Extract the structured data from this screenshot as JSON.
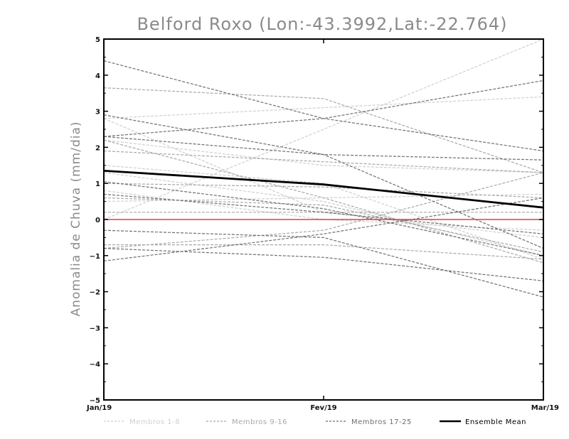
{
  "chart_data": {
    "type": "line",
    "title": "Belford Roxo (Lon:-43.3992,Lat:-22.764)",
    "ylabel": "Anomalia de Chuva (mm/dia)",
    "xlabel": "",
    "categories": [
      "Jan/19",
      "Fev/19",
      "Mar/19"
    ],
    "ylim": [
      -5,
      5
    ],
    "yticks": [
      -5,
      -4,
      -3,
      -2,
      -1,
      0,
      1,
      2,
      3,
      4,
      5
    ],
    "grid": false,
    "legend_position": "bottom",
    "zero_line": {
      "value": 0,
      "color": "#e04040"
    },
    "groups": [
      {
        "name": "Membros 1-8",
        "color": "#cfcfcf",
        "dash": "dashed"
      },
      {
        "name": "Membros 9-16",
        "color": "#a8a8a8",
        "dash": "dashed"
      },
      {
        "name": "Membros 17-25",
        "color": "#6e6e6e",
        "dash": "dashed"
      },
      {
        "name": "Ensemble Mean",
        "color": "#000000",
        "dash": "solid"
      }
    ],
    "series": [
      {
        "group": 0,
        "values": [
          0.0,
          2.5,
          5.0
        ]
      },
      {
        "group": 0,
        "values": [
          2.8,
          3.1,
          3.4
        ]
      },
      {
        "group": 0,
        "values": [
          0.5,
          0.6,
          0.7
        ]
      },
      {
        "group": 0,
        "values": [
          1.5,
          1.0,
          -1.1
        ]
      },
      {
        "group": 0,
        "values": [
          2.8,
          0.2,
          -0.5
        ]
      },
      {
        "group": 0,
        "values": [
          2.2,
          1.5,
          1.3
        ]
      },
      {
        "group": 0,
        "values": [
          0.8,
          0.0,
          -0.3
        ]
      },
      {
        "group": 0,
        "values": [
          1.3,
          0.5,
          -1.0
        ]
      },
      {
        "group": 1,
        "values": [
          3.65,
          3.35,
          1.3
        ]
      },
      {
        "group": 1,
        "values": [
          1.9,
          1.6,
          1.3
        ]
      },
      {
        "group": 1,
        "values": [
          2.2,
          0.6,
          -1.2
        ]
      },
      {
        "group": 1,
        "values": [
          0.2,
          0.2,
          0.2
        ]
      },
      {
        "group": 1,
        "values": [
          -0.8,
          -0.3,
          1.3
        ]
      },
      {
        "group": 1,
        "values": [
          0.6,
          0.4,
          -0.9
        ]
      },
      {
        "group": 1,
        "values": [
          -0.7,
          -0.7,
          -1.1
        ]
      },
      {
        "group": 1,
        "values": [
          1.0,
          0.9,
          0.6
        ]
      },
      {
        "group": 2,
        "values": [
          4.4,
          2.8,
          1.9
        ]
      },
      {
        "group": 2,
        "values": [
          2.3,
          2.8,
          3.85
        ]
      },
      {
        "group": 2,
        "values": [
          2.9,
          1.8,
          -0.8
        ]
      },
      {
        "group": 2,
        "values": [
          -1.15,
          -0.4,
          0.6
        ]
      },
      {
        "group": 2,
        "values": [
          1.05,
          0.3,
          -1.0
        ]
      },
      {
        "group": 2,
        "values": [
          0.7,
          0.2,
          -0.4
        ]
      },
      {
        "group": 2,
        "values": [
          -0.3,
          -0.5,
          -2.15
        ]
      },
      {
        "group": 2,
        "values": [
          -0.8,
          -1.05,
          -1.7
        ]
      },
      {
        "group": 2,
        "values": [
          2.3,
          1.8,
          1.65
        ]
      },
      {
        "group": 3,
        "name": "Ensemble Mean",
        "values": [
          1.35,
          0.97,
          0.33
        ]
      }
    ]
  }
}
